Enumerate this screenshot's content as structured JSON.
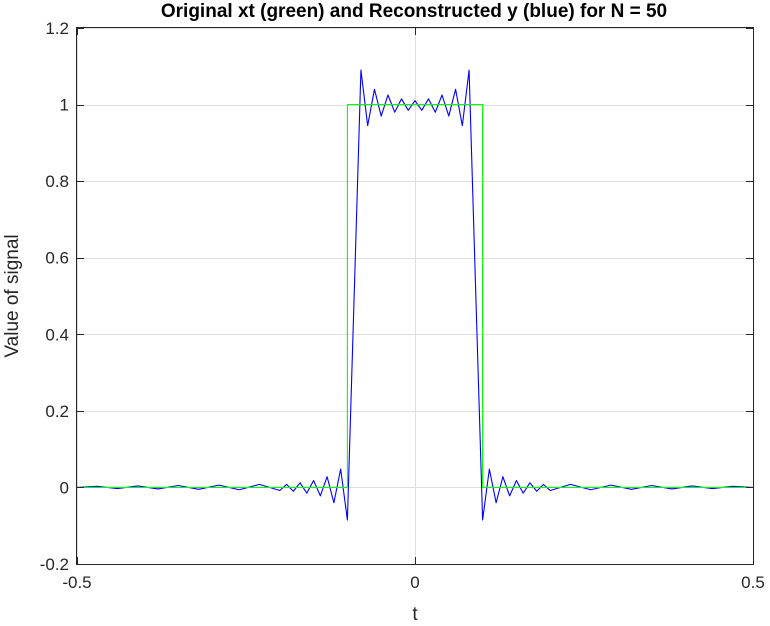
{
  "chart_data": {
    "type": "line",
    "title": "Original xt (green) and Reconstructed y (blue) for N = 50",
    "xlabel": "t",
    "ylabel": "Value of signal",
    "xlim": [
      -0.5,
      0.5
    ],
    "ylim": [
      -0.2,
      1.2
    ],
    "xticks": [
      -0.5,
      0,
      0.5
    ],
    "xtick_labels": [
      "-0.5",
      "0",
      "0.5"
    ],
    "yticks": [
      -0.2,
      0,
      0.2,
      0.4,
      0.6,
      0.8,
      1,
      1.2
    ],
    "ytick_labels": [
      "-0.2",
      "0",
      "0.2",
      "0.4",
      "0.6",
      "0.8",
      "1",
      "1.2"
    ],
    "grid": true,
    "series": [
      {
        "color": "#0000ff",
        "x": [
          -0.5,
          -0.47,
          -0.44,
          -0.41,
          -0.38,
          -0.35,
          -0.32,
          -0.29,
          -0.26,
          -0.23,
          -0.2,
          -0.19,
          -0.18,
          -0.17,
          -0.16,
          -0.15,
          -0.14,
          -0.13,
          -0.12,
          -0.11,
          -0.1,
          -0.09,
          -0.08,
          -0.07,
          -0.06,
          -0.05,
          -0.04,
          -0.03,
          -0.02,
          -0.01,
          0,
          0.01,
          0.02,
          0.03,
          0.04,
          0.05,
          0.06,
          0.07,
          0.08,
          0.09,
          0.1,
          0.11,
          0.12,
          0.13,
          0.14,
          0.15,
          0.16,
          0.17,
          0.18,
          0.19,
          0.2,
          0.23,
          0.26,
          0.29,
          0.32,
          0.35,
          0.38,
          0.41,
          0.44,
          0.47,
          0.5
        ],
        "y": [
          0,
          0.003,
          -0.003,
          0.004,
          -0.004,
          0.005,
          -0.005,
          0.006,
          -0.006,
          0.008,
          -0.008,
          0.008,
          -0.01,
          0.012,
          -0.015,
          0.018,
          -0.022,
          0.028,
          -0.04,
          0.048,
          -0.085,
          0.5,
          1.09,
          0.945,
          1.04,
          0.97,
          1.025,
          0.98,
          1.015,
          0.985,
          1.01,
          0.985,
          1.015,
          0.98,
          1.025,
          0.97,
          1.04,
          0.945,
          1.09,
          0.5,
          -0.085,
          0.048,
          -0.04,
          0.028,
          -0.022,
          0.018,
          -0.015,
          0.012,
          -0.01,
          0.008,
          -0.008,
          0.008,
          -0.006,
          0.006,
          -0.005,
          0.005,
          -0.004,
          0.004,
          -0.003,
          0.003,
          0
        ]
      },
      {
        "color": "#00ff00",
        "x": [
          -0.5,
          -0.1,
          -0.1,
          0.1,
          0.1,
          0.5
        ],
        "y": [
          0,
          0,
          1,
          1,
          0,
          0
        ]
      }
    ]
  }
}
